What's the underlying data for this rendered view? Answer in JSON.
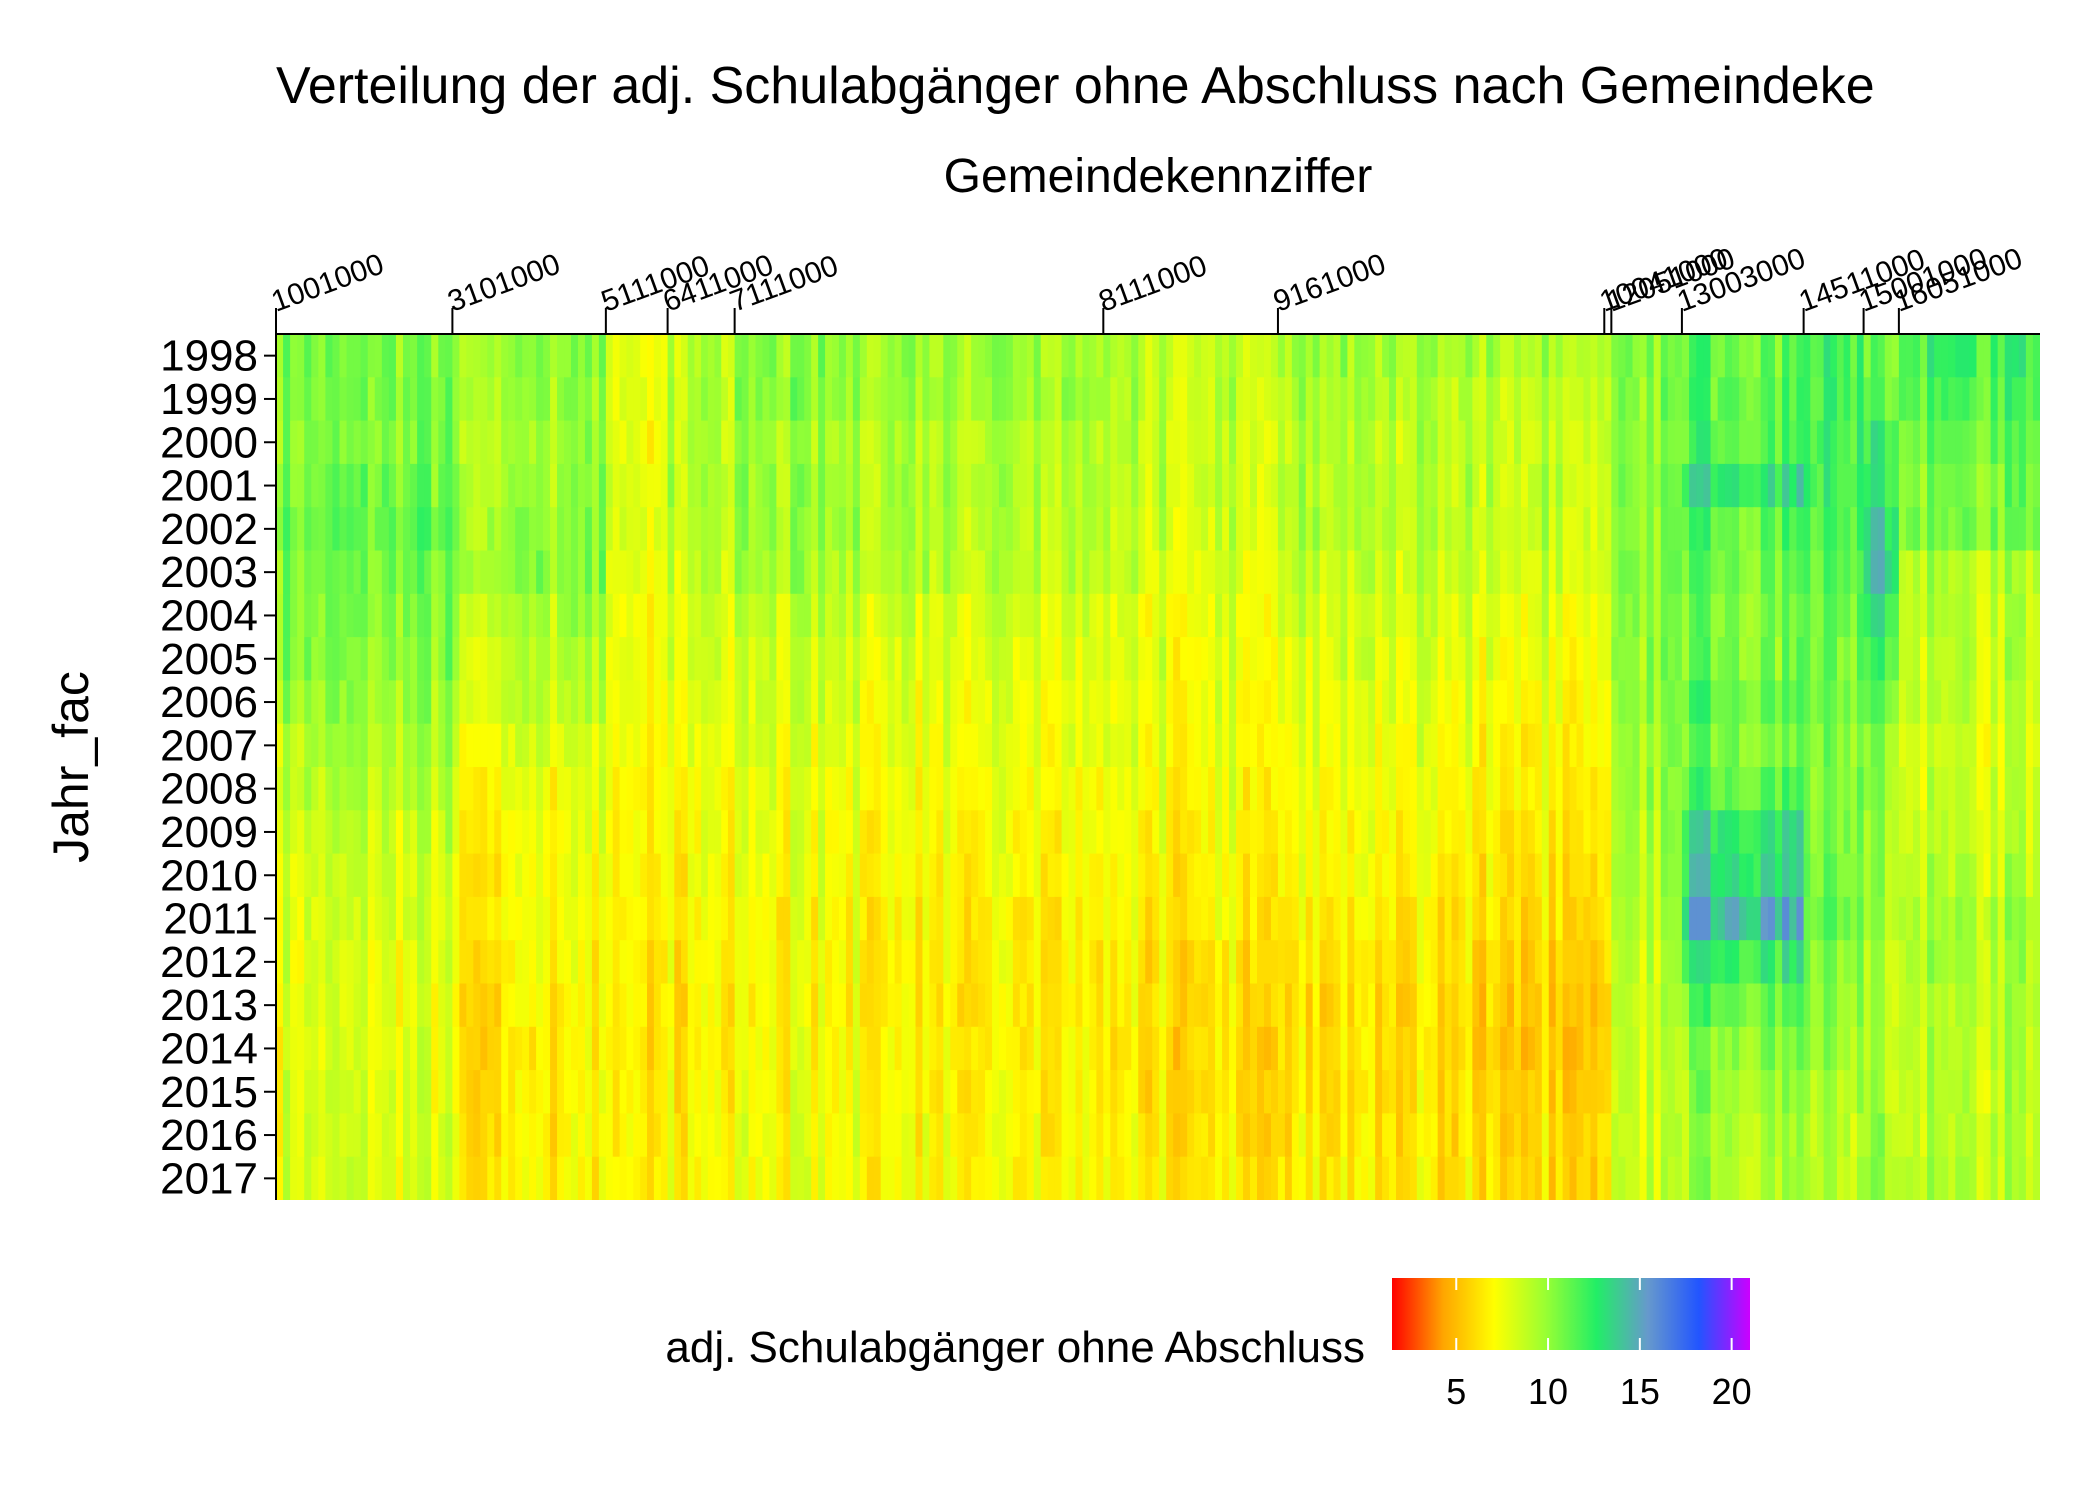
{
  "chart_data": {
    "type": "heatmap",
    "title": "Verteilung der adj. Schulabgänger ohne Abschluss nach Gemeindeke",
    "xlabel": "Gemeindekennziffer",
    "ylabel": "Jahr_fac",
    "x_ticks": [
      "1001000",
      "3101000",
      "5111000",
      "6411000",
      "7111000",
      "8111000",
      "9161000",
      "10041000",
      "12051000",
      "13003000",
      "14511000",
      "15001000",
      "16051000"
    ],
    "x_tick_positions": [
      0,
      100,
      187,
      222,
      260,
      469,
      568,
      753,
      757,
      797,
      866,
      900,
      920
    ],
    "x_range": [
      0,
      1000
    ],
    "y_categories": [
      "1998",
      "1999",
      "2000",
      "2001",
      "2002",
      "2003",
      "2004",
      "2005",
      "2006",
      "2007",
      "2008",
      "2009",
      "2010",
      "2011",
      "2012",
      "2013",
      "2014",
      "2015",
      "2016",
      "2017"
    ],
    "region_means": [
      {
        "x0": 0,
        "x1": 100,
        "values": [
          10.5,
          10.5,
          10.3,
          10.8,
          11.0,
          10.5,
          10.4,
          10.2,
          9.8,
          9.2,
          8.9,
          8.5,
          8.2,
          8.0,
          7.9,
          7.8,
          7.8,
          7.9,
          8.0,
          8.2
        ]
      },
      {
        "x0": 100,
        "x1": 187,
        "values": [
          9.8,
          9.6,
          9.4,
          9.6,
          9.8,
          9.9,
          9.2,
          8.8,
          8.4,
          7.8,
          7.4,
          7.1,
          6.9,
          6.9,
          6.7,
          6.4,
          6.3,
          6.4,
          6.5,
          6.6
        ]
      },
      {
        "x0": 187,
        "x1": 222,
        "values": [
          7.0,
          7.2,
          7.1,
          7.4,
          7.4,
          7.0,
          6.8,
          6.7,
          6.6,
          6.6,
          6.4,
          6.3,
          6.2,
          6.2,
          6.0,
          6.0,
          5.9,
          6.0,
          6.1,
          6.2
        ]
      },
      {
        "x0": 222,
        "x1": 260,
        "values": [
          8.6,
          8.7,
          8.6,
          8.9,
          8.7,
          8.2,
          7.9,
          7.7,
          7.4,
          7.2,
          7.0,
          6.8,
          6.7,
          6.6,
          6.4,
          6.3,
          6.3,
          6.4,
          6.5,
          6.6
        ]
      },
      {
        "x0": 260,
        "x1": 469,
        "values": [
          10.0,
          10.0,
          9.4,
          9.5,
          9.4,
          9.2,
          8.6,
          8.2,
          8.0,
          7.8,
          7.6,
          7.4,
          7.2,
          7.0,
          6.9,
          6.8,
          6.9,
          7.0,
          7.2,
          7.3
        ]
      },
      {
        "x0": 469,
        "x1": 568,
        "values": [
          9.0,
          8.9,
          8.6,
          8.6,
          8.4,
          8.1,
          7.8,
          7.7,
          7.6,
          7.5,
          7.3,
          7.1,
          6.9,
          6.8,
          6.5,
          6.3,
          6.2,
          6.3,
          6.4,
          6.6
        ]
      },
      {
        "x0": 568,
        "x1": 753,
        "values": [
          9.6,
          9.2,
          9.0,
          9.1,
          8.9,
          8.7,
          8.2,
          7.9,
          7.6,
          7.4,
          7.2,
          7.0,
          6.8,
          6.5,
          6.2,
          6.0,
          6.0,
          6.1,
          6.2,
          6.4
        ]
      },
      {
        "x0": 753,
        "x1": 757,
        "values": [
          10.0,
          10.0,
          9.8,
          9.8,
          9.7,
          9.4,
          9.0,
          8.7,
          8.4,
          8.2,
          8.0,
          7.8,
          7.6,
          7.4,
          7.2,
          7.0,
          7.0,
          7.1,
          7.2,
          7.4
        ]
      },
      {
        "x0": 757,
        "x1": 797,
        "values": [
          10.5,
          10.5,
          10.2,
          10.5,
          10.5,
          10.6,
          10.4,
          10.2,
          10.0,
          10.0,
          9.8,
          9.6,
          9.4,
          9.2,
          9.0,
          8.8,
          8.6,
          8.6,
          8.6,
          8.6
        ]
      },
      {
        "x0": 797,
        "x1": 866,
        "values": [
          11.2,
          11.3,
          11.5,
          13.0,
          11.3,
          11.0,
          10.6,
          10.6,
          11.4,
          10.6,
          11.2,
          13.0,
          13.3,
          14.6,
          12.6,
          11.2,
          10.2,
          9.8,
          9.6,
          9.4
        ]
      },
      {
        "x0": 866,
        "x1": 900,
        "values": [
          11.8,
          11.8,
          12.0,
          11.8,
          11.6,
          11.3,
          11.0,
          10.8,
          10.6,
          10.4,
          10.4,
          10.5,
          10.6,
          10.8,
          10.4,
          10.0,
          9.6,
          9.3,
          9.0,
          9.0
        ]
      },
      {
        "x0": 900,
        "x1": 920,
        "values": [
          11.0,
          11.4,
          12.4,
          12.8,
          13.6,
          14.2,
          12.8,
          11.8,
          11.0,
          10.4,
          10.2,
          10.0,
          9.8,
          9.6,
          9.4,
          9.2,
          9.2,
          9.4,
          9.6,
          9.8
        ]
      },
      {
        "x0": 920,
        "x1": 1000,
        "values": [
          12.0,
          11.4,
          11.0,
          10.6,
          10.6,
          9.0,
          8.8,
          8.8,
          8.6,
          8.2,
          8.4,
          8.6,
          8.8,
          9.4,
          9.2,
          9.0,
          8.8,
          8.8,
          8.8,
          9.0
        ]
      }
    ],
    "color_scale": {
      "min": 1.5,
      "max": 21.0,
      "stops": [
        "#ff0000",
        "#ffa500",
        "#ffff00",
        "#99ff33",
        "#22ee66",
        "#6699cc",
        "#2255ff",
        "#cc00ff"
      ]
    },
    "legend": {
      "title": "adj. Schulabgänger ohne Abschluss",
      "ticks": [
        "5",
        "10",
        "15",
        "20"
      ],
      "tick_values": [
        5,
        10,
        15,
        20
      ],
      "placement": "bottom"
    }
  }
}
